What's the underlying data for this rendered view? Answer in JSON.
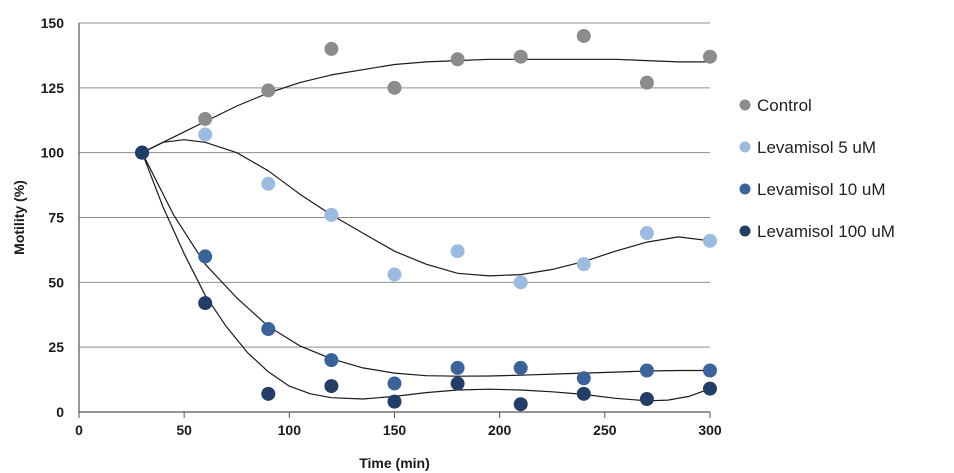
{
  "chart_data": {
    "type": "scatter",
    "title": "",
    "xlabel": "Time (min)",
    "ylabel": "Motility (%)",
    "xlim": [
      0,
      300
    ],
    "ylim": [
      0,
      150
    ],
    "xticks": [
      "0",
      "50",
      "100",
      "150",
      "200",
      "250",
      "300"
    ],
    "yticks": [
      "0",
      "25",
      "50",
      "75",
      "100",
      "125",
      "150"
    ],
    "grid": "horizontal",
    "legend_position": "right",
    "trend_lines": "smoothed",
    "series": [
      {
        "name": "Control",
        "color": "#8c8c8c",
        "points": [
          [
            30,
            100
          ],
          [
            60,
            113
          ],
          [
            90,
            124
          ],
          [
            120,
            140
          ],
          [
            150,
            125
          ],
          [
            180,
            136
          ],
          [
            210,
            137
          ],
          [
            240,
            145
          ],
          [
            270,
            127
          ],
          [
            300,
            137
          ]
        ],
        "fit": [
          [
            30,
            100
          ],
          [
            45,
            106
          ],
          [
            60,
            112
          ],
          [
            75,
            118
          ],
          [
            90,
            123
          ],
          [
            105,
            127
          ],
          [
            120,
            130
          ],
          [
            135,
            132
          ],
          [
            150,
            134
          ],
          [
            165,
            135
          ],
          [
            180,
            135.5
          ],
          [
            195,
            136
          ],
          [
            210,
            136
          ],
          [
            225,
            136
          ],
          [
            240,
            136
          ],
          [
            255,
            136
          ],
          [
            270,
            135.5
          ],
          [
            285,
            135
          ],
          [
            300,
            135
          ]
        ]
      },
      {
        "name": "Levamisol 5 uM",
        "color": "#9dbbe0",
        "points": [
          [
            30,
            100
          ],
          [
            60,
            107
          ],
          [
            90,
            88
          ],
          [
            120,
            76
          ],
          [
            150,
            53
          ],
          [
            180,
            62
          ],
          [
            210,
            50
          ],
          [
            240,
            57
          ],
          [
            270,
            69
          ],
          [
            300,
            66
          ]
        ],
        "fit": [
          [
            30,
            100
          ],
          [
            40,
            104
          ],
          [
            50,
            105
          ],
          [
            60,
            104
          ],
          [
            75,
            100
          ],
          [
            90,
            93
          ],
          [
            105,
            84
          ],
          [
            120,
            76
          ],
          [
            135,
            69
          ],
          [
            150,
            62
          ],
          [
            165,
            57
          ],
          [
            180,
            53.5
          ],
          [
            195,
            52.5
          ],
          [
            210,
            53
          ],
          [
            225,
            55
          ],
          [
            240,
            58
          ],
          [
            255,
            62
          ],
          [
            270,
            65.5
          ],
          [
            285,
            67.5
          ],
          [
            300,
            66
          ]
        ]
      },
      {
        "name": "Levamisol 10 uM",
        "color": "#3c6399",
        "points": [
          [
            30,
            100
          ],
          [
            60,
            60
          ],
          [
            90,
            32
          ],
          [
            120,
            20
          ],
          [
            150,
            11
          ],
          [
            180,
            17
          ],
          [
            210,
            17
          ],
          [
            240,
            13
          ],
          [
            270,
            16
          ],
          [
            300,
            16
          ]
        ],
        "fit": [
          [
            30,
            100
          ],
          [
            45,
            76
          ],
          [
            60,
            57
          ],
          [
            75,
            44
          ],
          [
            90,
            33
          ],
          [
            105,
            25.5
          ],
          [
            120,
            20.5
          ],
          [
            135,
            17
          ],
          [
            150,
            15
          ],
          [
            165,
            14
          ],
          [
            180,
            13.8
          ],
          [
            195,
            13.9
          ],
          [
            210,
            14.2
          ],
          [
            225,
            14.6
          ],
          [
            240,
            15
          ],
          [
            255,
            15.4
          ],
          [
            270,
            15.8
          ],
          [
            285,
            16
          ],
          [
            300,
            16
          ]
        ]
      },
      {
        "name": "Levamisol 100 uM",
        "color": "#223e66",
        "points": [
          [
            30,
            100
          ],
          [
            60,
            42
          ],
          [
            90,
            7
          ],
          [
            120,
            10
          ],
          [
            150,
            4
          ],
          [
            180,
            11
          ],
          [
            210,
            3
          ],
          [
            240,
            7
          ],
          [
            270,
            5
          ],
          [
            300,
            9
          ]
        ],
        "fit": [
          [
            30,
            100
          ],
          [
            40,
            79
          ],
          [
            50,
            61
          ],
          [
            60,
            45
          ],
          [
            70,
            33
          ],
          [
            80,
            23
          ],
          [
            90,
            15.5
          ],
          [
            100,
            10
          ],
          [
            110,
            7
          ],
          [
            120,
            5.5
          ],
          [
            135,
            5
          ],
          [
            150,
            6
          ],
          [
            165,
            7.5
          ],
          [
            180,
            8.5
          ],
          [
            195,
            8.8
          ],
          [
            210,
            8.5
          ],
          [
            225,
            7.8
          ],
          [
            240,
            6.8
          ],
          [
            255,
            5.3
          ],
          [
            270,
            4.3
          ],
          [
            280,
            4.6
          ],
          [
            290,
            6
          ],
          [
            300,
            9
          ]
        ]
      }
    ]
  }
}
